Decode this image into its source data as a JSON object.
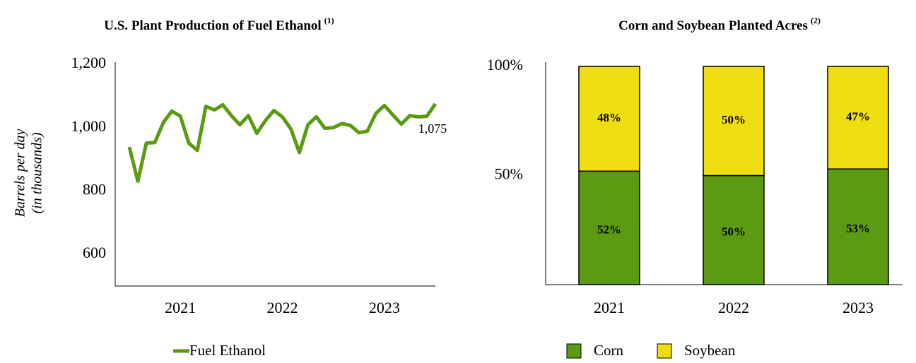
{
  "chart_data": [
    {
      "type": "line",
      "title": "U.S. Plant Production of Fuel Ethanol",
      "title_superscript": "(1)",
      "y_label": [
        "Barrels per day",
        "(in thousands)"
      ],
      "categories": [
        null,
        null,
        null,
        null,
        null,
        null,
        "2021",
        null,
        null,
        null,
        null,
        null,
        null,
        null,
        null,
        null,
        null,
        null,
        "2022",
        null,
        null,
        null,
        null,
        null,
        null,
        null,
        null,
        null,
        null,
        null,
        "2023",
        null,
        null,
        null,
        null,
        null,
        null
      ],
      "series": [
        {
          "name": "Fuel Ethanol",
          "color": "#5b9a12",
          "values": [
            939,
            831,
            951,
            953,
            1016,
            1052,
            1036,
            951,
            928,
            1067,
            1056,
            1072,
            1038,
            1009,
            1038,
            982,
            1022,
            1054,
            1034,
            996,
            921,
            1009,
            1034,
            998,
            1000,
            1013,
            1007,
            984,
            989,
            1045,
            1070,
            1040,
            1011,
            1038,
            1034,
            1036,
            1075
          ],
          "value_labels": [
            null,
            null,
            null,
            null,
            null,
            null,
            null,
            null,
            null,
            null,
            null,
            null,
            null,
            null,
            null,
            null,
            null,
            null,
            null,
            null,
            null,
            null,
            null,
            null,
            null,
            null,
            null,
            null,
            null,
            null,
            null,
            null,
            null,
            null,
            null,
            null,
            "1,075"
          ]
        }
      ],
      "ylim": [
        500,
        1200
      ],
      "yticks": [
        {
          "value": 600,
          "label": "600"
        },
        {
          "value": 800,
          "label": "800"
        },
        {
          "value": 1000,
          "label": "1,000"
        },
        {
          "value": 1200,
          "label": "1,200"
        }
      ],
      "grid": false
    },
    {
      "type": "stacked_bar",
      "title": "Corn and Soybean Planted Acres",
      "title_superscript": "(2)",
      "categories": [
        "2021",
        "2022",
        "2023"
      ],
      "series": [
        {
          "name": "Corn",
          "color": "#5b9a12",
          "values": [
            52,
            50,
            53
          ],
          "value_labels": [
            "52%",
            "50%",
            "53%"
          ]
        },
        {
          "name": "Soybean",
          "color": "#eedd11",
          "values": [
            48,
            50,
            47
          ],
          "value_labels": [
            "48%",
            "50%",
            "47%"
          ]
        }
      ],
      "ylim": [
        0,
        100
      ],
      "yticks": [
        {
          "value": 50,
          "label": "50%"
        },
        {
          "value": 100,
          "label": "100%"
        }
      ],
      "grid": false
    }
  ]
}
